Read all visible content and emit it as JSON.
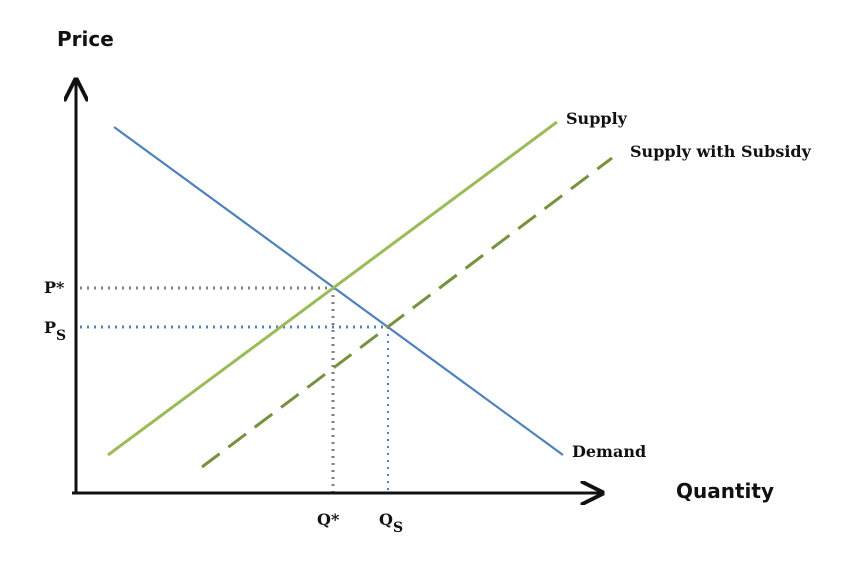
{
  "axes": {
    "y_title": "Price",
    "x_title": "Quantity"
  },
  "curves": {
    "supply_label": "Supply",
    "subsidy_label": "Supply with Subsidy",
    "demand_label": "Demand"
  },
  "ticks": {
    "p_star": "P*",
    "p_s_main": "P",
    "p_s_sub": "S",
    "q_star": "Q*",
    "q_s_main": "Q",
    "q_s_sub": "S"
  },
  "colors": {
    "axis": "#111111",
    "demand": "#4f81bd",
    "supply": "#9bbb59",
    "subsidy": "#76923c",
    "guide_equilibrium": "#7f7f7f",
    "guide_subsidy": "#4f81bd"
  }
}
